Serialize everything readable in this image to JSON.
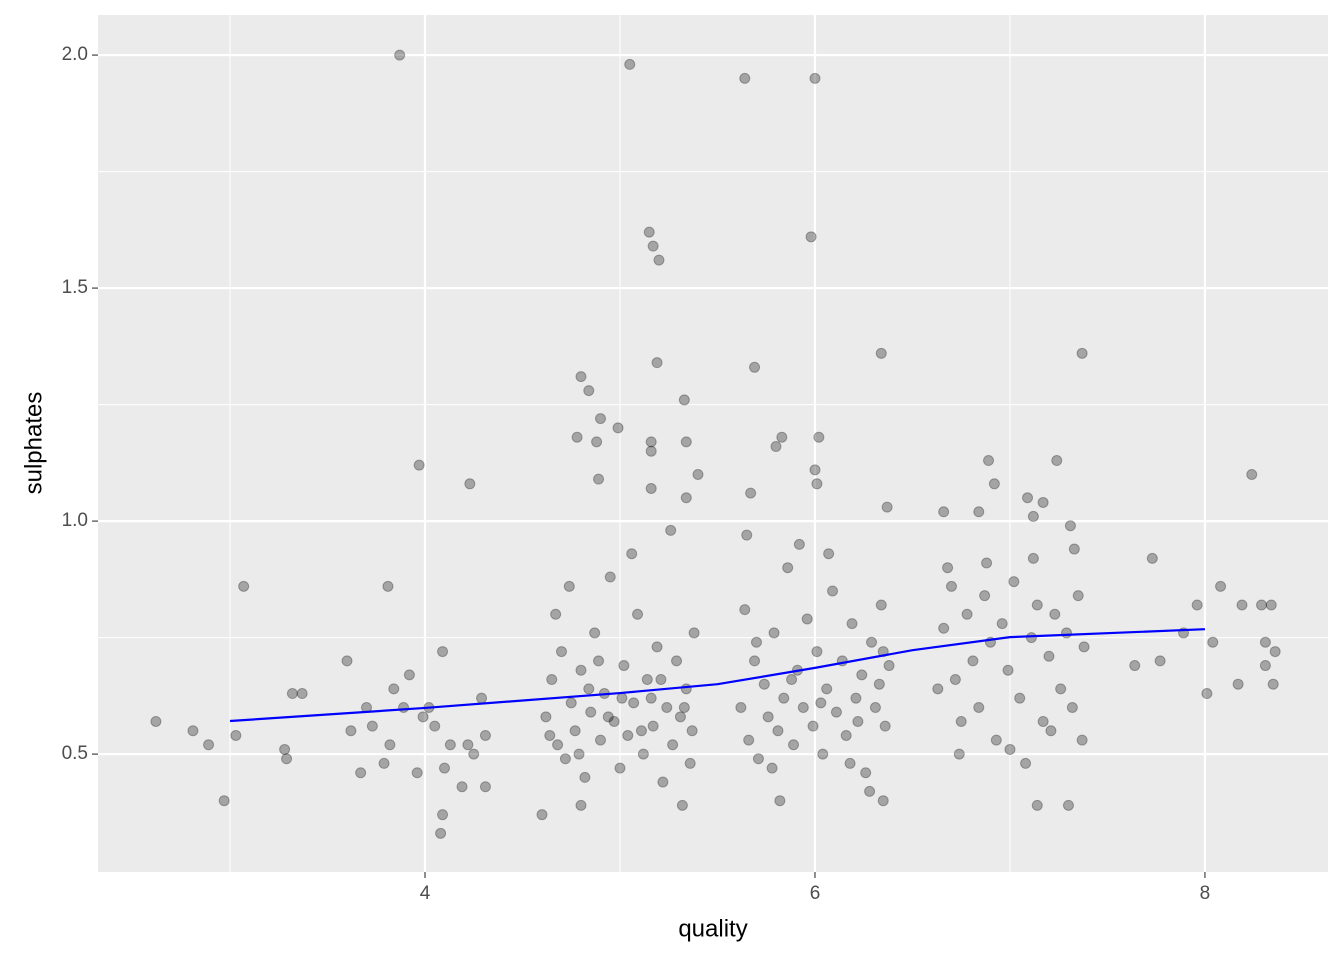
{
  "chart_data": {
    "type": "scatter",
    "x_label": "quality",
    "y_label": "sulphates",
    "xlim": [
      2.323,
      8.631
    ],
    "ylim": [
      0.247,
      2.086
    ],
    "xticks": [
      4,
      6,
      8
    ],
    "yticks": [
      0.5,
      {
        "value": 1,
        "label": "1.0"
      },
      1.5,
      {
        "value": 2,
        "label": "2.0"
      }
    ],
    "x_minor": [
      3,
      5,
      7
    ],
    "y_minor": [
      0.75,
      1.25,
      1.75
    ],
    "grid": true,
    "color": "#000000",
    "alpha": 0.3,
    "x": [
      3.87,
      5.05,
      5.64,
      6.0,
      5.15,
      5.17,
      5.2,
      5.98,
      5.19,
      5.69,
      6.34,
      7.37,
      4.8,
      4.84,
      5.33,
      4.9,
      4.99,
      4.78,
      4.88,
      5.16,
      5.34,
      5.16,
      5.4,
      5.83,
      6.02,
      5.8,
      6.0,
      6.01,
      5.67,
      3.97,
      4.23,
      4.89,
      5.16,
      5.34,
      6.37,
      6.66,
      6.84,
      6.89,
      6.92,
      7.09,
      7.12,
      7.24,
      7.17,
      7.31,
      8.24,
      7.73,
      3.07,
      3.81,
      2.62,
      2.81,
      2.89,
      2.97,
      3.03,
      3.28,
      3.29,
      3.32,
      3.37,
      3.6,
      3.62,
      3.67,
      3.7,
      3.73,
      3.79,
      3.82,
      3.84,
      3.89,
      3.92,
      3.96,
      3.99,
      4.02,
      4.05,
      4.08,
      4.09,
      4.09,
      4.1,
      4.13,
      4.19,
      4.22,
      4.25,
      4.29,
      4.31,
      4.31,
      4.6,
      4.8,
      5.32,
      5.82,
      6.28,
      6.35,
      7.14,
      7.3,
      7.64,
      7.77,
      7.89,
      7.96,
      8.01,
      8.04,
      8.08,
      8.17,
      8.19,
      8.29,
      8.31,
      8.31,
      8.34,
      8.35,
      8.36,
      4.62,
      4.65,
      4.68,
      4.7,
      4.72,
      4.75,
      4.77,
      4.8,
      4.82,
      4.85,
      4.87,
      4.9,
      4.92,
      4.95,
      4.97,
      5.0,
      5.02,
      5.04,
      5.07,
      5.09,
      5.12,
      5.14,
      5.17,
      5.19,
      5.22,
      5.24,
      5.27,
      5.29,
      5.31,
      5.34,
      5.36,
      5.38,
      4.64,
      4.74,
      4.84,
      4.94,
      5.06,
      5.16,
      5.26,
      5.37,
      4.67,
      4.79,
      4.89,
      5.01,
      5.11,
      5.21,
      5.33,
      5.62,
      5.64,
      5.66,
      5.69,
      5.71,
      5.74,
      5.76,
      5.79,
      5.81,
      5.84,
      5.86,
      5.89,
      5.91,
      5.94,
      5.96,
      5.99,
      6.01,
      6.04,
      6.06,
      6.09,
      6.11,
      6.14,
      6.16,
      6.19,
      6.21,
      6.24,
      6.26,
      6.29,
      6.31,
      6.34,
      6.36,
      6.38,
      5.65,
      5.78,
      5.92,
      6.07,
      6.22,
      6.33,
      5.7,
      5.88,
      6.03,
      6.18,
      6.35,
      6.63,
      6.66,
      6.7,
      6.72,
      6.75,
      6.78,
      6.81,
      6.84,
      6.87,
      6.9,
      6.93,
      6.96,
      6.99,
      7.02,
      7.05,
      7.08,
      7.11,
      7.14,
      7.17,
      7.2,
      7.23,
      7.26,
      7.29,
      7.32,
      7.35,
      7.38,
      6.68,
      6.88,
      7.12,
      7.33,
      7.37,
      6.74,
      7.0,
      7.21
    ],
    "values": [
      2.0,
      1.98,
      1.95,
      1.95,
      1.62,
      1.59,
      1.56,
      1.61,
      1.34,
      1.33,
      1.36,
      1.36,
      1.31,
      1.28,
      1.26,
      1.22,
      1.2,
      1.18,
      1.17,
      1.17,
      1.17,
      1.15,
      1.1,
      1.18,
      1.18,
      1.16,
      1.11,
      1.08,
      1.06,
      1.12,
      1.08,
      1.09,
      1.07,
      1.05,
      1.03,
      1.02,
      1.02,
      1.13,
      1.08,
      1.05,
      1.01,
      1.13,
      1.04,
      0.99,
      1.1,
      0.92,
      0.86,
      0.86,
      0.57,
      0.55,
      0.52,
      0.4,
      0.54,
      0.51,
      0.49,
      0.63,
      0.63,
      0.7,
      0.55,
      0.46,
      0.6,
      0.56,
      0.48,
      0.52,
      0.64,
      0.6,
      0.67,
      0.46,
      0.58,
      0.6,
      0.56,
      0.33,
      0.37,
      0.72,
      0.47,
      0.52,
      0.43,
      0.52,
      0.5,
      0.62,
      0.43,
      0.54,
      0.37,
      0.39,
      0.39,
      0.4,
      0.42,
      0.4,
      0.39,
      0.39,
      0.69,
      0.7,
      0.76,
      0.82,
      0.63,
      0.74,
      0.86,
      0.65,
      0.82,
      0.82,
      0.74,
      0.69,
      0.82,
      0.65,
      0.72,
      0.58,
      0.66,
      0.52,
      0.72,
      0.49,
      0.61,
      0.55,
      0.68,
      0.45,
      0.59,
      0.76,
      0.53,
      0.63,
      0.88,
      0.57,
      0.47,
      0.69,
      0.54,
      0.61,
      0.8,
      0.5,
      0.66,
      0.56,
      0.73,
      0.44,
      0.6,
      0.52,
      0.7,
      0.58,
      0.64,
      0.48,
      0.76,
      0.54,
      0.86,
      0.64,
      0.58,
      0.93,
      0.62,
      0.98,
      0.55,
      0.8,
      0.5,
      0.7,
      0.62,
      0.55,
      0.66,
      0.6,
      0.6,
      0.81,
      0.53,
      0.7,
      0.49,
      0.65,
      0.58,
      0.76,
      0.55,
      0.62,
      0.9,
      0.52,
      0.68,
      0.6,
      0.79,
      0.56,
      0.72,
      0.5,
      0.64,
      0.85,
      0.59,
      0.7,
      0.54,
      0.78,
      0.62,
      0.67,
      0.46,
      0.74,
      0.6,
      0.82,
      0.56,
      0.69,
      0.97,
      0.47,
      0.95,
      0.93,
      0.57,
      0.65,
      0.74,
      0.66,
      0.61,
      0.48,
      0.72,
      0.64,
      0.77,
      0.86,
      0.66,
      0.57,
      0.8,
      0.7,
      0.6,
      0.84,
      0.74,
      0.53,
      0.78,
      0.68,
      0.87,
      0.62,
      0.48,
      0.75,
      0.82,
      0.57,
      0.71,
      0.8,
      0.64,
      0.76,
      0.6,
      0.84,
      0.73,
      0.9,
      0.91,
      0.92,
      0.94,
      0.53,
      0.5,
      0.51,
      0.55
    ],
    "smooth": {
      "color": "#0000ff",
      "x": [
        3,
        4,
        5,
        5.5,
        6,
        6.5,
        7,
        8
      ],
      "values": [
        0.571,
        0.599,
        0.631,
        0.65,
        0.685,
        0.723,
        0.751,
        0.768
      ]
    }
  }
}
